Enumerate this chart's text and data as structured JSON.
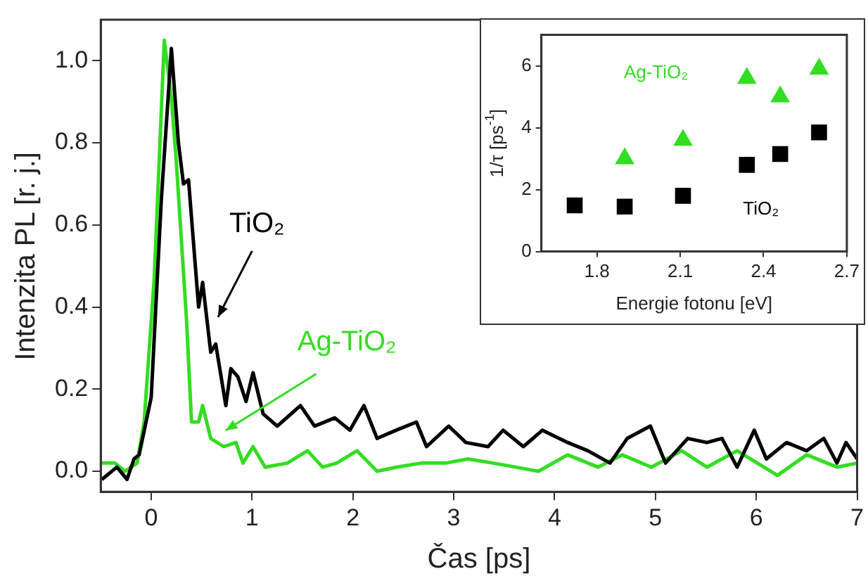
{
  "chart_data": [
    {
      "type": "line",
      "xlabel": "Čas [ps]",
      "ylabel": "Intenzita PL [r. j.]",
      "xlim": [
        -0.5,
        7
      ],
      "ylim": [
        -0.05,
        1.1
      ],
      "xticks": [
        0,
        1,
        2,
        3,
        4,
        5,
        6,
        7
      ],
      "yticks": [
        {
          "value": 0,
          "label": "0.0"
        },
        {
          "value": 0.2,
          "label": "0.2"
        },
        {
          "value": 0.4,
          "label": "0.4"
        },
        {
          "value": 0.6,
          "label": "0.6"
        },
        {
          "value": 0.8,
          "label": "0.8"
        },
        {
          "value": 1,
          "label": "1.0"
        }
      ],
      "grid": false,
      "legend": false,
      "marker": "none",
      "line_style": "solid",
      "series": [
        {
          "name": "TiO₂",
          "color": "#000000",
          "x": [
            -0.49,
            -0.34,
            -0.24,
            -0.17,
            -0.12,
            0.0,
            0.1,
            0.2,
            0.27,
            0.32,
            0.37,
            0.47,
            0.51,
            0.59,
            0.64,
            0.74,
            0.79,
            0.86,
            0.94,
            1.01,
            1.11,
            1.25,
            1.48,
            1.62,
            1.82,
            1.97,
            2.11,
            2.24,
            2.43,
            2.63,
            2.73,
            2.95,
            3.12,
            3.34,
            3.49,
            3.69,
            3.88,
            4.13,
            4.33,
            4.55,
            4.72,
            4.95,
            5.1,
            5.32,
            5.51,
            5.66,
            5.81,
            5.98,
            6.1,
            6.3,
            6.5,
            6.67,
            6.8,
            6.89,
            7.0
          ],
          "values": [
            -0.02,
            0.01,
            -0.02,
            0.03,
            0.04,
            0.18,
            0.66,
            1.03,
            0.8,
            0.7,
            0.71,
            0.4,
            0.46,
            0.29,
            0.31,
            0.16,
            0.25,
            0.23,
            0.17,
            0.24,
            0.14,
            0.11,
            0.16,
            0.11,
            0.13,
            0.1,
            0.16,
            0.08,
            0.1,
            0.12,
            0.06,
            0.11,
            0.07,
            0.06,
            0.1,
            0.06,
            0.1,
            0.07,
            0.05,
            0.02,
            0.08,
            0.11,
            0.02,
            0.08,
            0.07,
            0.08,
            0.01,
            0.1,
            0.03,
            0.07,
            0.05,
            0.08,
            0.02,
            0.07,
            0.03
          ]
        },
        {
          "name": "Ag-TiO₂",
          "color": "#33dd22",
          "x": [
            -0.49,
            -0.36,
            -0.26,
            -0.14,
            -0.07,
            0.03,
            0.13,
            0.2,
            0.25,
            0.35,
            0.4,
            0.47,
            0.51,
            0.59,
            0.72,
            0.84,
            0.91,
            1.01,
            1.13,
            1.35,
            1.55,
            1.7,
            1.84,
            2.04,
            2.24,
            2.43,
            2.68,
            2.92,
            3.14,
            3.39,
            3.84,
            4.13,
            4.43,
            4.67,
            4.96,
            5.26,
            5.51,
            5.81,
            6.21,
            6.5,
            6.8,
            7.0
          ],
          "values": [
            0.02,
            0.02,
            0.0,
            0.02,
            0.12,
            0.47,
            1.05,
            0.91,
            0.75,
            0.37,
            0.12,
            0.12,
            0.16,
            0.08,
            0.06,
            0.07,
            0.02,
            0.06,
            0.01,
            0.02,
            0.05,
            0.01,
            0.02,
            0.05,
            0.0,
            0.01,
            0.02,
            0.02,
            0.03,
            0.02,
            0.0,
            0.04,
            0.01,
            0.04,
            0.01,
            0.05,
            0.01,
            0.05,
            -0.01,
            0.04,
            0.01,
            0.02
          ]
        }
      ]
    },
    {
      "type": "scatter",
      "xlabel": "Energie fotonu [eV]",
      "ylabel": "1/τ [ps$^{-1}$]",
      "xlim": [
        1.6,
        2.7
      ],
      "ylim": [
        0,
        7
      ],
      "xticks": [
        1.8,
        2.1,
        2.4,
        2.7
      ],
      "yticks": [
        0,
        2,
        4,
        6
      ],
      "grid": false,
      "legend": false,
      "series": [
        {
          "name": "Ag-TiO₂",
          "color": "#33dd22",
          "marker": "triangle",
          "x": [
            1.9,
            2.11,
            2.34,
            2.46,
            2.6
          ],
          "values": [
            3.0,
            3.6,
            5.6,
            5.0,
            5.9
          ]
        },
        {
          "name": "TiO₂",
          "color": "#000000",
          "marker": "square",
          "x": [
            1.72,
            1.9,
            2.11,
            2.34,
            2.46,
            2.6
          ],
          "values": [
            1.49,
            1.45,
            1.8,
            2.8,
            3.15,
            3.85
          ]
        }
      ]
    }
  ]
}
